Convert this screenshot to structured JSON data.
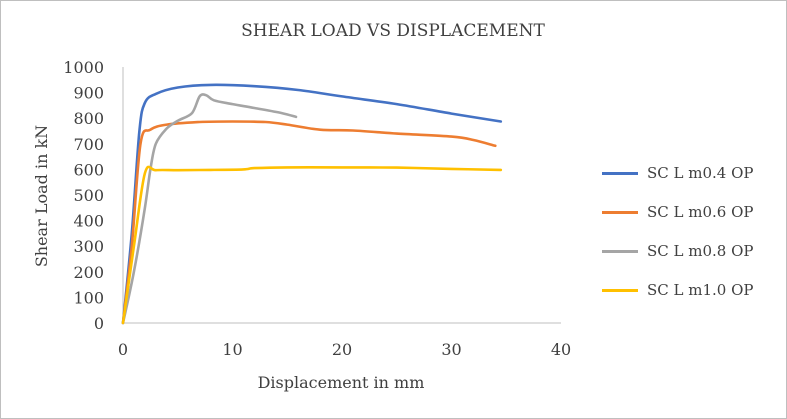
{
  "chart_data": {
    "type": "line",
    "title": "SHEAR LOAD VS DISPLACEMENT",
    "xlabel": "Displacement in mm",
    "ylabel": "Shear Load in kN",
    "xlim": [
      0,
      40
    ],
    "ylim": [
      0,
      1000
    ],
    "x_ticks": [
      "0",
      "10",
      "20",
      "30",
      "40"
    ],
    "y_ticks": [
      "0",
      "100",
      "200",
      "300",
      "400",
      "500",
      "600",
      "700",
      "800",
      "900",
      "1000"
    ],
    "grid": false,
    "legend_position": "right",
    "series": [
      {
        "name": "SC L m0.4 OP",
        "color": "#4472C4",
        "points": [
          [
            0,
            0
          ],
          [
            0.8,
            350
          ],
          [
            1.5,
            750
          ],
          [
            2,
            860
          ],
          [
            3,
            895
          ],
          [
            5,
            920
          ],
          [
            8,
            930
          ],
          [
            12,
            925
          ],
          [
            16,
            910
          ],
          [
            20,
            885
          ],
          [
            25,
            855
          ],
          [
            30,
            818
          ],
          [
            34.5,
            787
          ]
        ]
      },
      {
        "name": "SC L m0.6 OP",
        "color": "#ED7D31",
        "points": [
          [
            0,
            0
          ],
          [
            0.8,
            300
          ],
          [
            1.6,
            700
          ],
          [
            2.5,
            755
          ],
          [
            4,
            775
          ],
          [
            7,
            785
          ],
          [
            10,
            787
          ],
          [
            13,
            785
          ],
          [
            15,
            775
          ],
          [
            18,
            755
          ],
          [
            21,
            752
          ],
          [
            25,
            740
          ],
          [
            30,
            728
          ],
          [
            32,
            715
          ],
          [
            34,
            692
          ]
        ]
      },
      {
        "name": "SC L m0.8 OP",
        "color": "#A5A5A5",
        "points": [
          [
            0,
            0
          ],
          [
            1,
            200
          ],
          [
            2,
            450
          ],
          [
            2.5,
            600
          ],
          [
            3,
            700
          ],
          [
            4,
            760
          ],
          [
            5,
            790
          ],
          [
            6.3,
            820
          ],
          [
            7,
            885
          ],
          [
            7.6,
            890
          ],
          [
            8.3,
            870
          ],
          [
            10,
            855
          ],
          [
            12,
            840
          ],
          [
            14.5,
            820
          ],
          [
            15.8,
            805
          ]
        ]
      },
      {
        "name": "SC L m1.0 OP",
        "color": "#FFC000",
        "points": [
          [
            0,
            0
          ],
          [
            1,
            300
          ],
          [
            2,
            585
          ],
          [
            3,
            597
          ],
          [
            5,
            597
          ],
          [
            8,
            598
          ],
          [
            11,
            600
          ],
          [
            12,
            605
          ],
          [
            15,
            608
          ],
          [
            20,
            608
          ],
          [
            25,
            607
          ],
          [
            30,
            602
          ],
          [
            34.5,
            598
          ]
        ]
      }
    ]
  }
}
